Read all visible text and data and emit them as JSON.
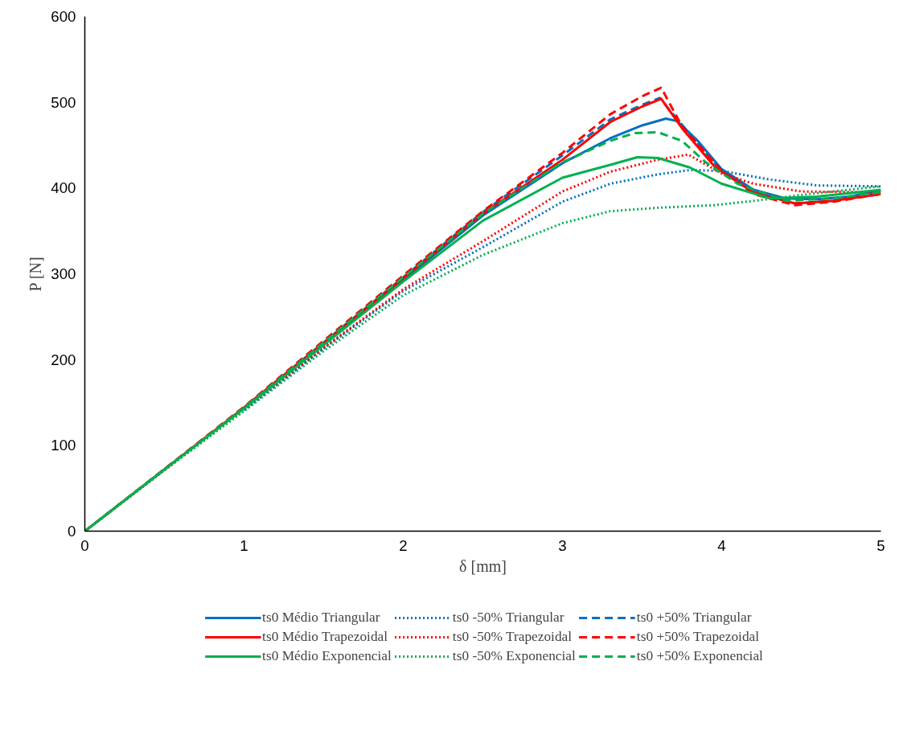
{
  "chart_data": {
    "type": "line",
    "xlabel": "δ [mm]",
    "ylabel": "P [N]",
    "xlim": [
      0,
      5
    ],
    "ylim": [
      0,
      600
    ],
    "xticks": [
      0,
      1,
      2,
      3,
      4,
      5
    ],
    "yticks": [
      0,
      100,
      200,
      300,
      400,
      500,
      600
    ],
    "legend": "bottom",
    "series": [
      {
        "name": "ts0 Médio Triangular",
        "color": "#0070c0",
        "line_style": "solid",
        "x": [
          1.5,
          2,
          2.5,
          3,
          3.3,
          3.5,
          3.65,
          3.72,
          3.85,
          4,
          4.2,
          4.4,
          4.6,
          4.8,
          5
        ],
        "values": [
          218,
          293,
          368,
          429,
          458,
          473,
          481,
          478,
          455,
          422,
          398,
          388,
          387,
          390,
          397
        ]
      },
      {
        "name": "ts0 -50% Triangular",
        "color": "#0070c0",
        "line_style": "dotted",
        "x": [
          1,
          1.5,
          2,
          2.5,
          3,
          3.3,
          3.6,
          3.8,
          4,
          4.3,
          4.6,
          5
        ],
        "values": [
          141,
          213,
          280,
          331,
          384,
          405,
          416,
          421,
          420,
          410,
          403,
          402
        ]
      },
      {
        "name": "ts0 +50% Triangular",
        "color": "#0070c0",
        "line_style": "dashed",
        "x": [
          1,
          1.5,
          2,
          2.5,
          3,
          3.3,
          3.5,
          3.61,
          3.7,
          3.85,
          4,
          4.2,
          4.46,
          4.7,
          5
        ],
        "values": [
          144,
          220,
          296,
          372,
          438,
          480,
          497,
          505,
          485,
          452,
          420,
          395,
          382,
          385,
          395
        ]
      },
      {
        "name": "ts0 Médio Trapezoidal",
        "color": "#ff0000",
        "line_style": "solid",
        "x": [
          0,
          1,
          1.5,
          2,
          2.5,
          3,
          3.3,
          3.5,
          3.62,
          3.75,
          3.96,
          4.2,
          4.46,
          4.7,
          5
        ],
        "values": [
          0,
          144,
          219,
          295,
          370,
          433,
          477,
          495,
          504,
          470,
          424,
          395,
          382,
          385,
          393
        ]
      },
      {
        "name": "ts0 -50% Trapezoidal",
        "color": "#ff0000",
        "line_style": "dotted",
        "x": [
          0,
          1,
          1.5,
          2,
          2.5,
          3,
          3.3,
          3.6,
          3.79,
          4,
          4.2,
          4.5,
          5
        ],
        "values": [
          0,
          142,
          214,
          282,
          338,
          396,
          419,
          433,
          439,
          417,
          405,
          396,
          395
        ]
      },
      {
        "name": "ts0 +50% Trapezoidal",
        "color": "#ff0000",
        "line_style": "dashed",
        "x": [
          0,
          1,
          1.5,
          2,
          2.5,
          3,
          3.3,
          3.5,
          3.62,
          3.75,
          4,
          4.2,
          4.46,
          4.7,
          5
        ],
        "values": [
          0,
          145,
          222,
          298,
          373,
          441,
          486,
          507,
          517,
          472,
          420,
          393,
          380,
          384,
          393
        ]
      },
      {
        "name": "ts0 Médio Exponencial",
        "color": "#00b050",
        "line_style": "solid",
        "x": [
          0,
          0.5,
          1,
          1.5,
          2,
          2.5,
          3,
          3.3,
          3.47,
          3.6,
          3.8,
          4,
          4.3,
          4.6,
          5
        ],
        "values": [
          0,
          72,
          143,
          217,
          291,
          362,
          412,
          427,
          436,
          435,
          424,
          405,
          388,
          390,
          398
        ]
      },
      {
        "name": "ts0 -50% Exponencial",
        "color": "#00b050",
        "line_style": "dotted",
        "x": [
          0,
          0.5,
          1,
          1.5,
          2,
          2.5,
          3,
          3.3,
          3.6,
          3.95,
          4.2,
          4.5,
          5
        ],
        "values": [
          0,
          71,
          140,
          210,
          275,
          322,
          359,
          373,
          377,
          380,
          385,
          392,
          402
        ]
      },
      {
        "name": "ts0 +50% Exponencial",
        "color": "#00b050",
        "line_style": "dashed",
        "x": [
          0,
          0.5,
          1,
          1.5,
          2,
          2.5,
          3,
          3.3,
          3.45,
          3.6,
          3.75,
          3.9,
          4.1,
          4.4,
          4.7,
          5
        ],
        "values": [
          0,
          72,
          144,
          220,
          296,
          370,
          430,
          455,
          464,
          465,
          455,
          430,
          405,
          385,
          388,
          395
        ]
      }
    ]
  }
}
